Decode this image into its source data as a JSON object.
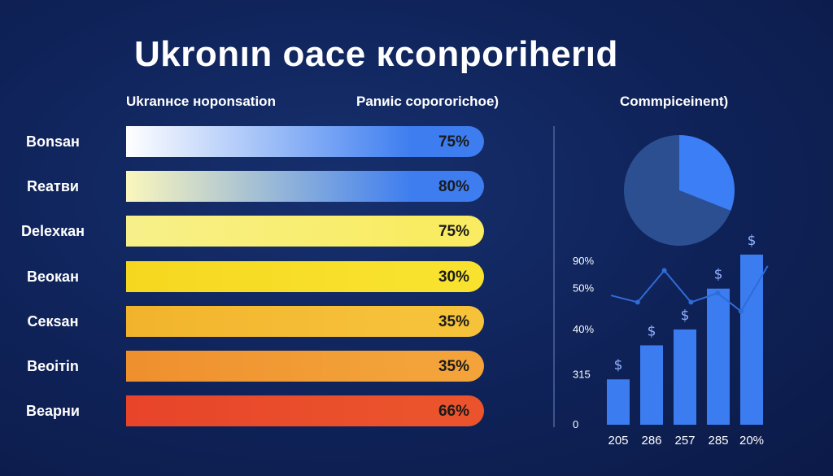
{
  "title": "Ukronın oace кconporiherıd",
  "subheads": {
    "left": "Ukranнce ноponsation",
    "middle": "Panиic сорогоrichое)",
    "right": "Commpiceinent)"
  },
  "colors": {
    "background": "#0f2258",
    "accent_blue": "#3b7cf0",
    "line": "#2f6cd8"
  },
  "chart_data": [
    {
      "type": "bar",
      "orientation": "horizontal",
      "categories": [
        "Bonsан",
        "Reатви",
        "Delexкан",
        "Beокан",
        "Ceкsан",
        "Beoiтin",
        "Beарни"
      ],
      "values": [
        75,
        80,
        75,
        30,
        35,
        35,
        66
      ],
      "value_labels": [
        "75%",
        "80%",
        "75%",
        "30%",
        "35%",
        "35%",
        "66%"
      ],
      "bar_colors": [
        [
          "#ffffff",
          "#3d7df0"
        ],
        [
          "#fbf7bd",
          "#3d7df0"
        ],
        [
          "#f7f08a",
          "#f9ec63"
        ],
        [
          "#f6d71f",
          "#f8e22e"
        ],
        [
          "#f2b32c",
          "#f6c23a"
        ],
        [
          "#ef8f2e",
          "#f3a33a"
        ],
        [
          "#e8442a",
          "#ea532c"
        ]
      ]
    },
    {
      "type": "pie",
      "slices": [
        {
          "value": 31,
          "color": "#3b7ef5"
        },
        {
          "value": 69,
          "color": "#2c4f92"
        }
      ]
    },
    {
      "type": "bar",
      "categories": [
        "205",
        "286",
        "257",
        "285",
        "20%"
      ],
      "values": [
        20,
        35,
        42,
        60,
        75
      ],
      "bar_symbols": [
        "$",
        "$",
        "$",
        "$",
        "$"
      ],
      "yticks": [
        "0",
        "315",
        "40%",
        "50%",
        "90%"
      ],
      "ytick_values": [
        0,
        22,
        42,
        60,
        72
      ],
      "ylim": [
        0,
        85
      ],
      "line_series": [
        {
          "x": 0,
          "y": 57
        },
        {
          "x": 0.8,
          "y": 54
        },
        {
          "x": 1.6,
          "y": 68
        },
        {
          "x": 2.4,
          "y": 54
        },
        {
          "x": 3.2,
          "y": 58
        },
        {
          "x": 3.9,
          "y": 50
        },
        {
          "x": 4.7,
          "y": 70
        }
      ]
    }
  ]
}
